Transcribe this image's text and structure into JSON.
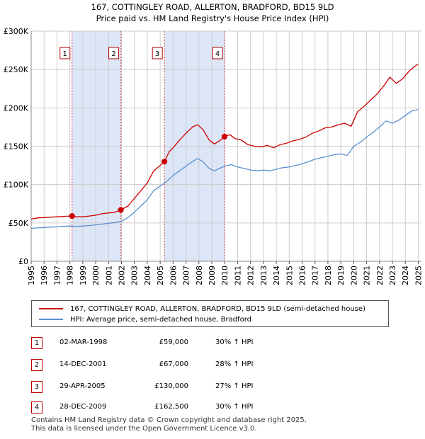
{
  "title_line1": "167, COTTINGLEY ROAD, ALLERTON, BRADFORD, BD15 9LD",
  "title_line2": "Price paid vs. HM Land Registry's House Price Index (HPI)",
  "colors": {
    "price": "#cc0000",
    "hpi": "#5b8fcf",
    "shade": "#dde6f7",
    "marker_border": "#b00000"
  },
  "chart_data": {
    "type": "line",
    "xlim": [
      1995,
      2025.25
    ],
    "ylim": [
      0,
      300000
    ],
    "x_ticks": [
      "1995",
      "1996",
      "1997",
      "1998",
      "1999",
      "2000",
      "2001",
      "2002",
      "2003",
      "2004",
      "2005",
      "2006",
      "2007",
      "2008",
      "2009",
      "2010",
      "2011",
      "2012",
      "2013",
      "2014",
      "2015",
      "2016",
      "2017",
      "2018",
      "2019",
      "2020",
      "2021",
      "2022",
      "2023",
      "2024",
      "2025"
    ],
    "y_ticks": [
      {
        "value": 0,
        "label": "£0"
      },
      {
        "value": 50000,
        "label": "£50K"
      },
      {
        "value": 100000,
        "label": "£100K"
      },
      {
        "value": 150000,
        "label": "£150K"
      },
      {
        "value": 200000,
        "label": "£200K"
      },
      {
        "value": 250000,
        "label": "£250K"
      },
      {
        "value": 300000,
        "label": "£300K"
      }
    ],
    "shaded_ranges": [
      [
        1998.17,
        2001.95
      ],
      [
        2005.33,
        2009.99
      ]
    ],
    "sales": [
      {
        "id": "1",
        "x": 1998.17,
        "y": 59000
      },
      {
        "id": "2",
        "x": 2001.95,
        "y": 67000
      },
      {
        "id": "3",
        "x": 2005.33,
        "y": 130000
      },
      {
        "id": "4",
        "x": 2009.99,
        "y": 162500
      }
    ],
    "series": [
      {
        "name": "167, COTTINGLEY ROAD, ALLERTON, BRADFORD, BD15 9LD (semi-detached house)",
        "color": "#cc0000",
        "points": [
          [
            1995.0,
            55000
          ],
          [
            1995.5,
            56500
          ],
          [
            1996.0,
            57000
          ],
          [
            1996.5,
            57500
          ],
          [
            1997.0,
            58000
          ],
          [
            1997.5,
            58500
          ],
          [
            1998.0,
            59000
          ],
          [
            1998.17,
            59000
          ],
          [
            1998.5,
            58000
          ],
          [
            1999.0,
            58000
          ],
          [
            1999.5,
            59000
          ],
          [
            2000.0,
            60000
          ],
          [
            2000.5,
            62000
          ],
          [
            2001.0,
            63000
          ],
          [
            2001.5,
            64000
          ],
          [
            2001.95,
            67000
          ],
          [
            2002.5,
            72000
          ],
          [
            2003.0,
            82000
          ],
          [
            2003.5,
            92000
          ],
          [
            2004.0,
            102000
          ],
          [
            2004.5,
            118000
          ],
          [
            2005.0,
            125000
          ],
          [
            2005.33,
            130000
          ],
          [
            2005.7,
            143000
          ],
          [
            2006.0,
            148000
          ],
          [
            2006.5,
            158000
          ],
          [
            2007.0,
            167000
          ],
          [
            2007.5,
            175000
          ],
          [
            2007.9,
            178000
          ],
          [
            2008.3,
            172000
          ],
          [
            2008.8,
            158000
          ],
          [
            2009.2,
            153000
          ],
          [
            2009.6,
            157000
          ],
          [
            2009.99,
            162500
          ],
          [
            2010.4,
            165000
          ],
          [
            2010.8,
            160000
          ],
          [
            2011.3,
            158000
          ],
          [
            2011.8,
            152000
          ],
          [
            2012.3,
            150000
          ],
          [
            2012.8,
            149000
          ],
          [
            2013.3,
            151000
          ],
          [
            2013.8,
            148000
          ],
          [
            2014.3,
            152000
          ],
          [
            2014.8,
            154000
          ],
          [
            2015.3,
            157000
          ],
          [
            2015.8,
            159000
          ],
          [
            2016.3,
            162000
          ],
          [
            2016.8,
            167000
          ],
          [
            2017.3,
            170000
          ],
          [
            2017.8,
            174000
          ],
          [
            2018.3,
            175000
          ],
          [
            2018.8,
            178000
          ],
          [
            2019.3,
            180000
          ],
          [
            2019.8,
            176000
          ],
          [
            2020.3,
            195000
          ],
          [
            2020.8,
            202000
          ],
          [
            2021.3,
            210000
          ],
          [
            2021.8,
            218000
          ],
          [
            2022.3,
            228000
          ],
          [
            2022.8,
            240000
          ],
          [
            2023.3,
            232000
          ],
          [
            2023.8,
            238000
          ],
          [
            2024.3,
            248000
          ],
          [
            2024.8,
            255000
          ],
          [
            2025.0,
            257000
          ]
        ]
      },
      {
        "name": "HPI: Average price, semi-detached house, Bradford",
        "color": "#5b8fcf",
        "points": [
          [
            1995.0,
            43000
          ],
          [
            1995.5,
            43500
          ],
          [
            1996.0,
            44000
          ],
          [
            1996.5,
            44500
          ],
          [
            1997.0,
            45000
          ],
          [
            1997.5,
            45500
          ],
          [
            1998.0,
            46000
          ],
          [
            1998.5,
            45500
          ],
          [
            1999.0,
            46000
          ],
          [
            1999.5,
            46500
          ],
          [
            2000.0,
            47500
          ],
          [
            2000.5,
            48500
          ],
          [
            2001.0,
            49500
          ],
          [
            2001.5,
            50500
          ],
          [
            2002.0,
            52000
          ],
          [
            2002.5,
            57000
          ],
          [
            2003.0,
            64000
          ],
          [
            2003.5,
            72000
          ],
          [
            2004.0,
            80000
          ],
          [
            2004.5,
            92000
          ],
          [
            2005.0,
            98000
          ],
          [
            2005.5,
            104000
          ],
          [
            2006.0,
            112000
          ],
          [
            2006.5,
            118000
          ],
          [
            2007.0,
            124000
          ],
          [
            2007.5,
            130000
          ],
          [
            2007.9,
            134000
          ],
          [
            2008.3,
            130000
          ],
          [
            2008.8,
            121000
          ],
          [
            2009.2,
            118000
          ],
          [
            2009.6,
            121000
          ],
          [
            2010.0,
            124000
          ],
          [
            2010.5,
            126000
          ],
          [
            2011.0,
            123000
          ],
          [
            2011.5,
            121000
          ],
          [
            2012.0,
            119000
          ],
          [
            2012.5,
            118000
          ],
          [
            2013.0,
            119000
          ],
          [
            2013.5,
            118000
          ],
          [
            2014.0,
            120000
          ],
          [
            2014.5,
            122000
          ],
          [
            2015.0,
            123000
          ],
          [
            2015.5,
            125000
          ],
          [
            2016.0,
            127000
          ],
          [
            2016.5,
            130000
          ],
          [
            2017.0,
            133000
          ],
          [
            2017.5,
            135000
          ],
          [
            2018.0,
            137000
          ],
          [
            2018.5,
            139000
          ],
          [
            2019.0,
            140000
          ],
          [
            2019.5,
            138000
          ],
          [
            2020.0,
            150000
          ],
          [
            2020.5,
            155000
          ],
          [
            2021.0,
            162000
          ],
          [
            2021.5,
            168000
          ],
          [
            2022.0,
            175000
          ],
          [
            2022.5,
            183000
          ],
          [
            2023.0,
            180000
          ],
          [
            2023.5,
            184000
          ],
          [
            2024.0,
            190000
          ],
          [
            2024.5,
            196000
          ],
          [
            2025.0,
            198000
          ]
        ]
      }
    ]
  },
  "legend": {
    "price_label": "167, COTTINGLEY ROAD, ALLERTON, BRADFORD, BD15 9LD (semi-detached house)",
    "hpi_label": "HPI: Average price, semi-detached house, Bradford"
  },
  "transactions": [
    {
      "id": "1",
      "date": "02-MAR-1998",
      "price": "£59,000",
      "hpi": "30% ↑ HPI"
    },
    {
      "id": "2",
      "date": "14-DEC-2001",
      "price": "£67,000",
      "hpi": "28% ↑ HPI"
    },
    {
      "id": "3",
      "date": "29-APR-2005",
      "price": "£130,000",
      "hpi": "27% ↑ HPI"
    },
    {
      "id": "4",
      "date": "28-DEC-2009",
      "price": "£162,500",
      "hpi": "30% ↑ HPI"
    }
  ],
  "footer_line1": "Contains HM Land Registry data © Crown copyright and database right 2025.",
  "footer_line2": "This data is licensed under the Open Government Licence v3.0."
}
